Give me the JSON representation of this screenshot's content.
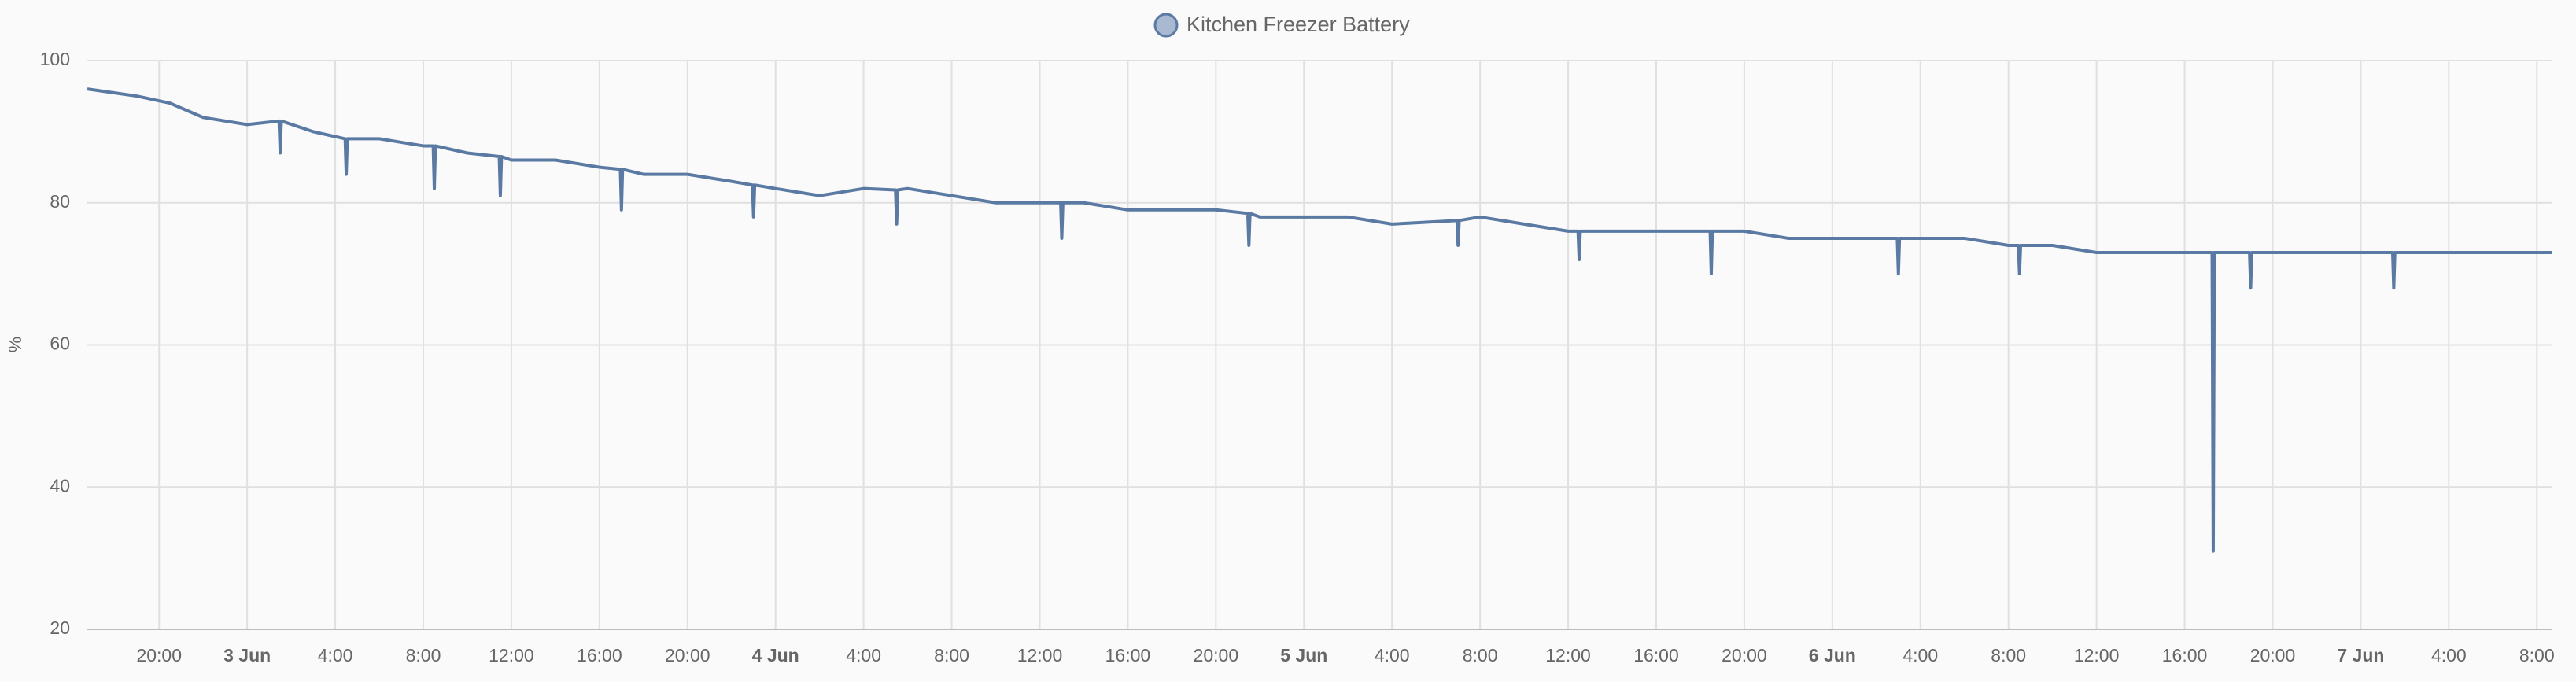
{
  "chart_data": {
    "type": "line",
    "legend": "Kitchen Freezer Battery",
    "y_label": "%",
    "series": [
      {
        "name": "Kitchen Freezer Battery",
        "color": "#5b7aa3",
        "x": [
          -7.26,
          -5,
          -3.5,
          -2,
          0,
          1.45,
          1.5,
          1.55,
          3,
          4.45,
          4.5,
          4.55,
          6,
          8,
          8.45,
          8.5,
          8.55,
          10,
          11.45,
          11.5,
          11.55,
          12,
          14,
          16,
          16.95,
          17,
          17.05,
          18,
          20,
          22,
          22.95,
          23,
          23.05,
          24,
          26,
          28,
          29.45,
          29.5,
          29.55,
          30,
          32,
          34,
          36.95,
          37,
          37.05,
          38,
          40,
          42,
          44,
          45.45,
          45.5,
          45.55,
          46,
          48,
          50,
          52,
          54.95,
          55,
          55.05,
          56,
          58,
          60,
          60.45,
          60.5,
          60.55,
          62,
          64,
          66.45,
          66.5,
          66.55,
          68,
          70,
          72,
          74.95,
          75,
          75.05,
          76,
          78,
          80,
          80.45,
          80.5,
          80.55,
          82,
          84,
          86,
          88,
          89.25,
          89.3,
          89.35,
          90,
          90.95,
          91,
          91.05,
          92,
          94,
          96,
          97.45,
          97.5,
          97.55,
          98,
          100,
          102,
          104.67
        ],
        "values": [
          96,
          95,
          94,
          92,
          91,
          91.5,
          87,
          91.5,
          90,
          89,
          84,
          89,
          89,
          88,
          88,
          82,
          88,
          87,
          86.5,
          81,
          86.5,
          86,
          86,
          85,
          84.7,
          79,
          84.7,
          84,
          84,
          83,
          82.5,
          78,
          82.5,
          82,
          81,
          82,
          81.8,
          77,
          81.8,
          82,
          81,
          80,
          80,
          75,
          80,
          80,
          79,
          79,
          79,
          78.5,
          74,
          78.5,
          78,
          78,
          78,
          77,
          77.5,
          74,
          77.5,
          78,
          77,
          76,
          76,
          72,
          76,
          76,
          76,
          76,
          70,
          76,
          76,
          75,
          75,
          75,
          70,
          75,
          75,
          75,
          74,
          74,
          70,
          74,
          74,
          73,
          73,
          73,
          73,
          31,
          73,
          73,
          73,
          68,
          73,
          73,
          73,
          73,
          73,
          68,
          73,
          73,
          73,
          73,
          73
        ]
      }
    ],
    "xlim": [
      -7.26,
      104.67
    ],
    "xticks": [
      {
        "value": -4,
        "label": "20:00"
      },
      {
        "value": 0,
        "label": "3 Jun"
      },
      {
        "value": 4,
        "label": "4:00"
      },
      {
        "value": 8,
        "label": "8:00"
      },
      {
        "value": 12,
        "label": "12:00"
      },
      {
        "value": 16,
        "label": "16:00"
      },
      {
        "value": 20,
        "label": "20:00"
      },
      {
        "value": 24,
        "label": "4 Jun"
      },
      {
        "value": 28,
        "label": "4:00"
      },
      {
        "value": 32,
        "label": "8:00"
      },
      {
        "value": 36,
        "label": "12:00"
      },
      {
        "value": 40,
        "label": "16:00"
      },
      {
        "value": 44,
        "label": "20:00"
      },
      {
        "value": 48,
        "label": "5 Jun"
      },
      {
        "value": 52,
        "label": "4:00"
      },
      {
        "value": 56,
        "label": "8:00"
      },
      {
        "value": 60,
        "label": "12:00"
      },
      {
        "value": 64,
        "label": "16:00"
      },
      {
        "value": 68,
        "label": "20:00"
      },
      {
        "value": 72,
        "label": "6 Jun"
      },
      {
        "value": 76,
        "label": "4:00"
      },
      {
        "value": 80,
        "label": "8:00"
      },
      {
        "value": 84,
        "label": "12:00"
      },
      {
        "value": 88,
        "label": "16:00"
      },
      {
        "value": 92,
        "label": "20:00"
      },
      {
        "value": 96,
        "label": "7 Jun"
      },
      {
        "value": 100,
        "label": "4:00"
      },
      {
        "value": 104,
        "label": "8:00"
      }
    ],
    "ylim": [
      20,
      100
    ],
    "yticks": [
      20,
      40,
      60,
      80,
      100
    ],
    "grid": true
  }
}
